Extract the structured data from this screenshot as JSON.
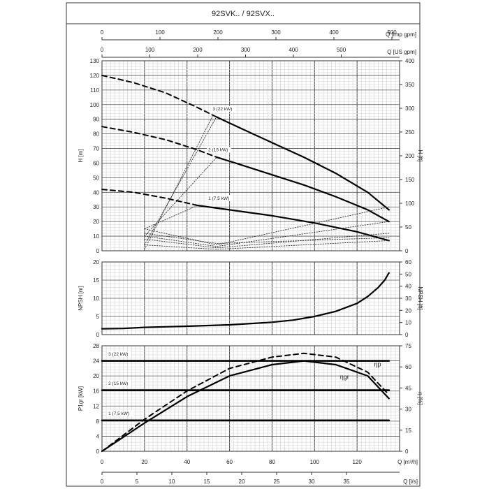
{
  "title": "92SVK.. / 92SVX..",
  "top_axes": {
    "imp_gpm": {
      "label": "Q [Imp gpm]",
      "ticks": [
        "0",
        "100",
        "200",
        "300",
        "400",
        "500"
      ]
    },
    "us_gpm": {
      "label": "Q [US gpm]",
      "ticks": [
        "0",
        "100",
        "200",
        "300",
        "400",
        "500"
      ]
    }
  },
  "bottom_axes": {
    "m3h": {
      "label": "Q [m³/h]",
      "ticks": [
        "0",
        "20",
        "40",
        "60",
        "80",
        "100",
        "120"
      ]
    },
    "ls": {
      "label": "Q [l/s]",
      "ticks": [
        "0",
        "5",
        "10",
        "15",
        "20",
        "25",
        "30",
        "35"
      ]
    }
  },
  "chart_data": [
    {
      "type": "line",
      "panel": "head",
      "xlabel": "Q [m³/h]",
      "ylabel": "H [m]",
      "ylabel_right": "H [ft]",
      "xlim": [
        0,
        140
      ],
      "ylim": [
        0,
        130
      ],
      "y_ticks": [
        "0",
        "10",
        "20",
        "30",
        "40",
        "50",
        "60",
        "70",
        "80",
        "90",
        "100",
        "110",
        "120",
        "130"
      ],
      "y_ticks_right": [
        "0",
        "50",
        "100",
        "150",
        "200",
        "250",
        "300",
        "350",
        "400"
      ],
      "grid": true,
      "series": [
        {
          "name": "3 (22 kW)",
          "style": "solid",
          "x": [
            54,
            65,
            80,
            95,
            110,
            125,
            135
          ],
          "y": [
            91.5,
            84,
            74,
            64,
            53,
            40,
            28
          ]
        },
        {
          "name": "3 (22 kW)",
          "style": "dashed",
          "x": [
            0,
            15,
            30,
            45,
            54
          ],
          "y": [
            120,
            115,
            108,
            98,
            91.5
          ]
        },
        {
          "name": "2 (15 kW)",
          "style": "solid",
          "x": [
            54,
            65,
            80,
            95,
            110,
            125,
            135
          ],
          "y": [
            64,
            59,
            52,
            45,
            37,
            28,
            20
          ]
        },
        {
          "name": "2 (15 kW)",
          "style": "dashed",
          "x": [
            0,
            15,
            30,
            45,
            54
          ],
          "y": [
            85,
            81,
            76,
            69,
            64
          ]
        },
        {
          "name": "1 (7,5 kW)",
          "style": "solid",
          "x": [
            45,
            60,
            80,
            100,
            120,
            135
          ],
          "y": [
            31,
            28,
            24,
            19,
            13,
            7
          ]
        },
        {
          "name": "1 (7,5 kW)",
          "style": "dashed",
          "x": [
            0,
            15,
            30,
            45
          ],
          "y": [
            42,
            40,
            36,
            31
          ]
        },
        {
          "name": "",
          "style": "dotted",
          "x": [
            20,
            54,
            135
          ],
          "y": [
            15,
            4,
            30
          ]
        },
        {
          "name": "",
          "style": "dotted",
          "x": [
            20,
            54,
            135
          ],
          "y": [
            10,
            3,
            20
          ]
        },
        {
          "name": "",
          "style": "dotted",
          "x": [
            20,
            54,
            135
          ],
          "y": [
            8,
            2,
            12
          ]
        },
        {
          "name": "",
          "style": "dotted",
          "x": [
            20,
            54,
            135
          ],
          "y": [
            4,
            1,
            7
          ]
        },
        {
          "name": "",
          "style": "dotted",
          "x": [
            20,
            54,
            135
          ],
          "y": [
            12,
            5,
            9
          ]
        },
        {
          "name": "",
          "style": "dotted",
          "x": [
            20,
            54
          ],
          "y": [
            4,
            92
          ]
        },
        {
          "name": "",
          "style": "dotted",
          "x": [
            20,
            54
          ],
          "y": [
            10,
            64
          ]
        },
        {
          "name": "",
          "style": "dotted",
          "x": [
            20,
            45
          ],
          "y": [
            15,
            31
          ]
        },
        {
          "name": "",
          "style": "dotted",
          "x": [
            20,
            52
          ],
          "y": [
            1,
            92
          ]
        }
      ],
      "annotations": [
        {
          "text": "3 (22 kW)",
          "x": 52,
          "y": 96
        },
        {
          "text": "2 (15 kW)",
          "x": 50,
          "y": 68
        },
        {
          "text": "1 (7,5 kW)",
          "x": 50,
          "y": 35
        }
      ]
    },
    {
      "type": "line",
      "panel": "npsh",
      "xlabel": "Q [m³/h]",
      "ylabel": "NPSH [m]",
      "ylabel_right": "NPSH [ft]",
      "xlim": [
        0,
        140
      ],
      "ylim": [
        0,
        20
      ],
      "y_ticks": [
        "0",
        "5",
        "10",
        "15",
        "20"
      ],
      "y_ticks_right": [
        "0",
        "10",
        "20",
        "30",
        "40",
        "50",
        "60"
      ],
      "grid": true,
      "series": [
        {
          "name": "",
          "style": "solid",
          "x": [
            0,
            10,
            20,
            40,
            60,
            80,
            90,
            100,
            110,
            120,
            125,
            130,
            133,
            135
          ],
          "y": [
            1.6,
            1.7,
            2.0,
            2.3,
            2.7,
            3.4,
            4.0,
            5.0,
            6.4,
            8.6,
            10.5,
            13,
            15,
            17
          ]
        }
      ]
    },
    {
      "type": "line",
      "panel": "power_efficiency",
      "xlabel": "Q [m³/h]",
      "ylabel": "P1gr [kW]",
      "ylabel_right": "η [%]",
      "xlim": [
        0,
        140
      ],
      "ylim": [
        0,
        28
      ],
      "y_ticks": [
        "0",
        "4",
        "8",
        "12",
        "16",
        "20",
        "24",
        "28"
      ],
      "y_ticks_right": [
        "0",
        "15",
        "30",
        "45",
        "60",
        "75"
      ],
      "grid": true,
      "series": [
        {
          "name": "ηgr",
          "style": "solid",
          "x": [
            0,
            20,
            40,
            60,
            80,
            95,
            110,
            125,
            135
          ],
          "y": [
            0,
            7.5,
            14.5,
            20,
            23,
            24,
            23,
            20,
            14
          ]
        },
        {
          "name": "ηp",
          "style": "dashed",
          "x": [
            0,
            20,
            40,
            60,
            80,
            95,
            110,
            125,
            135
          ],
          "y": [
            0,
            8.5,
            16,
            22,
            25,
            26,
            25,
            21,
            15
          ]
        },
        {
          "name": "3 (22 kW)",
          "style": "solid-thick",
          "x": [
            0,
            135
          ],
          "y": [
            24,
            24
          ]
        },
        {
          "name": "2 (15 kW)",
          "style": "solid-thick",
          "x": [
            0,
            135
          ],
          "y": [
            16.2,
            16.2
          ]
        },
        {
          "name": "1 (7,5 kW)",
          "style": "solid-thick",
          "x": [
            0,
            135
          ],
          "y": [
            8.2,
            8.2
          ]
        }
      ],
      "annotations": [
        {
          "text": "3 (22 kW)",
          "x": 3,
          "y": 25.4
        },
        {
          "text": "2 (15 kW)",
          "x": 3,
          "y": 17.6
        },
        {
          "text": "1 (7,5 kW)",
          "x": 3,
          "y": 9.6
        },
        {
          "text": "ηp",
          "x": 128,
          "y": 22.5
        },
        {
          "text": "ηgr",
          "x": 112,
          "y": 19.2
        }
      ]
    }
  ]
}
